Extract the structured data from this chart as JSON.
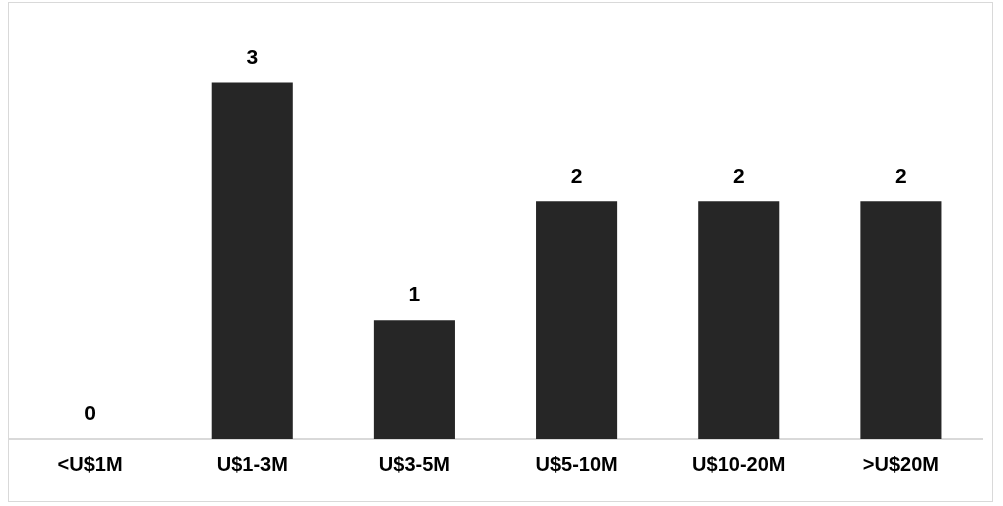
{
  "chart_data": {
    "type": "bar",
    "categories": [
      "<U$1M",
      "U$1-3M",
      "U$3-5M",
      "U$5-10M",
      "U$10-20M",
      ">U$20M"
    ],
    "values": [
      0,
      3,
      1,
      2,
      2,
      2
    ],
    "color": "#262626",
    "data_labels": true,
    "grid": false,
    "legend": false
  }
}
